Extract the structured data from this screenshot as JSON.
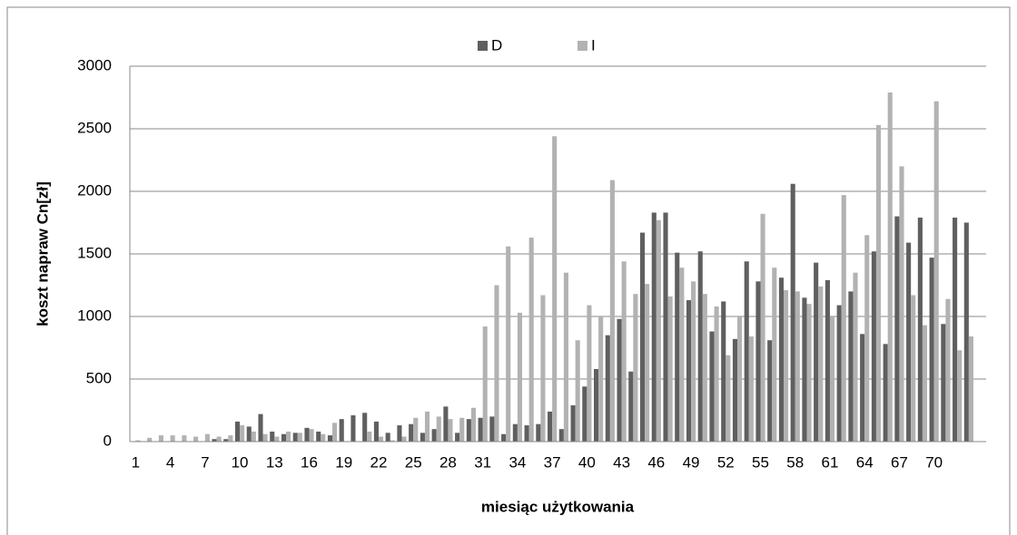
{
  "chart_data": {
    "type": "bar",
    "y_label": "koszt napraw Cn[zł]",
    "x_label": "miesiąc użytkowania",
    "categories": [
      1,
      null,
      null,
      4,
      null,
      null,
      7,
      null,
      null,
      10,
      null,
      null,
      13,
      null,
      null,
      16,
      null,
      null,
      19,
      null,
      null,
      22,
      null,
      null,
      25,
      null,
      null,
      28,
      null,
      null,
      31,
      null,
      null,
      34,
      null,
      null,
      37,
      null,
      null,
      40,
      null,
      null,
      43,
      null,
      null,
      46,
      null,
      null,
      49,
      null,
      null,
      52,
      null,
      null,
      55,
      null,
      null,
      58,
      null,
      null,
      61,
      null,
      null,
      64,
      null,
      null,
      67,
      null,
      null,
      70,
      null,
      null,
      null,
      null
    ],
    "series": [
      {
        "name": "D",
        "color": "#5f5f5f",
        "values": [
          0,
          0,
          0,
          0,
          0,
          0,
          0,
          20,
          20,
          160,
          120,
          220,
          80,
          60,
          70,
          110,
          80,
          50,
          180,
          210,
          230,
          160,
          70,
          130,
          140,
          70,
          100,
          280,
          70,
          180,
          190,
          200,
          60,
          140,
          130,
          140,
          240,
          100,
          290,
          440,
          580,
          850,
          980,
          560,
          1670,
          1830,
          1830,
          1510,
          1130,
          1520,
          880,
          1120,
          820,
          1440,
          1280,
          810,
          1310,
          2060,
          1150,
          1430,
          1290,
          1090,
          1200,
          860,
          1520,
          780,
          1800,
          1590,
          1790,
          1470,
          940,
          1790,
          1750,
          0
        ]
      },
      {
        "name": "I",
        "color": "#b2b2b2",
        "values": [
          10,
          30,
          50,
          50,
          50,
          40,
          60,
          40,
          50,
          130,
          80,
          60,
          40,
          80,
          70,
          100,
          60,
          150,
          0,
          0,
          80,
          40,
          10,
          40,
          190,
          240,
          200,
          180,
          190,
          270,
          920,
          1250,
          1560,
          1030,
          1630,
          1170,
          2440,
          1350,
          810,
          1090,
          1000,
          2090,
          1440,
          1180,
          1260,
          1770,
          1160,
          1390,
          1280,
          1180,
          1080,
          690,
          1000,
          840,
          1820,
          1390,
          1210,
          1200,
          1100,
          1240,
          1000,
          1970,
          1350,
          1650,
          2530,
          2790,
          2200,
          1170,
          930,
          2720,
          1140,
          730,
          840,
          0
        ]
      }
    ],
    "ylim": [
      0,
      3000
    ],
    "yticks": [
      0,
      500,
      1000,
      1500,
      2000,
      2500,
      3000
    ],
    "grid": true,
    "legend": "top"
  }
}
